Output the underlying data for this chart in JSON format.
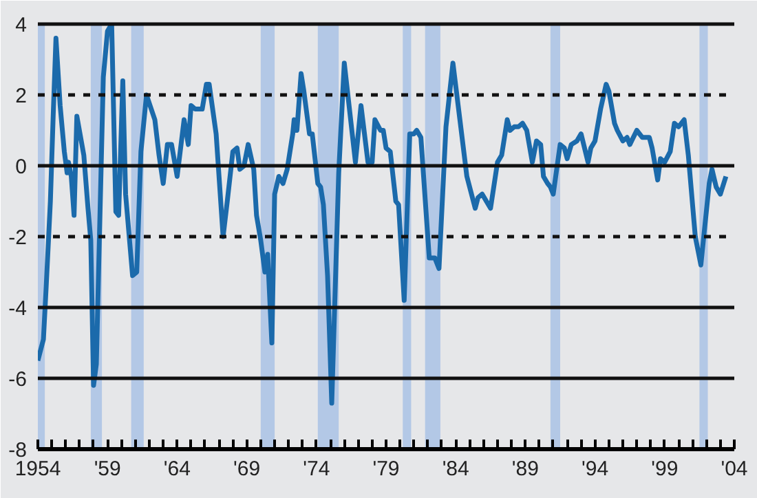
{
  "chart_data": {
    "type": "line",
    "x": [
      1954.0,
      1954.4,
      1954.6,
      1954.9,
      1955.1,
      1955.3,
      1955.6,
      1955.9,
      1956.1,
      1956.2,
      1956.4,
      1956.6,
      1956.8,
      1957.3,
      1957.6,
      1957.8,
      1958.0,
      1958.2,
      1958.7,
      1959.0,
      1959.3,
      1959.6,
      1959.8,
      1960.1,
      1960.3,
      1960.8,
      1961.1,
      1961.4,
      1961.8,
      1962.4,
      1962.7,
      1963.0,
      1963.3,
      1963.6,
      1964.0,
      1964.5,
      1964.8,
      1965.0,
      1965.3,
      1965.8,
      1966.1,
      1966.3,
      1966.8,
      1967.3,
      1967.6,
      1968.0,
      1968.3,
      1968.5,
      1968.8,
      1969.1,
      1969.5,
      1969.7,
      1970.0,
      1970.3,
      1970.5,
      1970.8,
      1971.0,
      1971.3,
      1971.6,
      1971.9,
      1972.3,
      1972.4,
      1972.6,
      1972.9,
      1973.1,
      1973.5,
      1973.7,
      1974.1,
      1974.3,
      1974.5,
      1974.8,
      1975.1,
      1975.6,
      1976.0,
      1976.8,
      1977.2,
      1977.7,
      1978.0,
      1978.2,
      1978.6,
      1978.8,
      1979.0,
      1979.3,
      1979.7,
      1979.9,
      1980.3,
      1980.7,
      1981.0,
      1981.2,
      1981.5,
      1982.1,
      1982.5,
      1982.8,
      1983.3,
      1983.8,
      1984.3,
      1984.8,
      1985.4,
      1985.6,
      1985.9,
      1986.5,
      1987.0,
      1987.3,
      1987.7,
      1987.9,
      1988.2,
      1988.5,
      1988.8,
      1989.1,
      1989.5,
      1989.8,
      1990.1,
      1990.3,
      1990.6,
      1990.8,
      1991.0,
      1991.5,
      1991.8,
      1992.0,
      1992.3,
      1992.7,
      1993.0,
      1993.5,
      1993.7,
      1994.0,
      1994.4,
      1994.8,
      1995.0,
      1995.4,
      1995.6,
      1996.0,
      1996.3,
      1996.5,
      1997.0,
      1997.4,
      1997.9,
      1998.1,
      1998.5,
      1998.7,
      1999.0,
      1999.4,
      1999.7,
      2000.0,
      2000.4,
      2000.7,
      2001.2,
      2001.6,
      2002.2,
      2002.4,
      2002.7,
      2003.0,
      2003.4
    ],
    "series": [
      {
        "color": "#1b6aab",
        "values": [
          -5.5,
          -4.9,
          -3.4,
          -1.0,
          1.4,
          3.6,
          1.7,
          0.4,
          -0.2,
          0.1,
          -0.3,
          -1.4,
          1.4,
          0.3,
          -1.2,
          -2.1,
          -6.2,
          -5.6,
          2.5,
          3.8,
          4.0,
          -1.3,
          -1.4,
          2.4,
          -0.8,
          -3.1,
          -3.0,
          0.4,
          2.0,
          1.3,
          0.3,
          -0.5,
          0.6,
          0.6,
          -0.3,
          1.3,
          0.6,
          1.7,
          1.6,
          1.6,
          2.3,
          2.3,
          0.9,
          -2.0,
          -1.0,
          0.4,
          0.5,
          -0.1,
          0.0,
          0.6,
          -0.1,
          -1.4,
          -2.1,
          -3.0,
          -2.5,
          -5.0,
          -0.8,
          -0.3,
          -0.5,
          -0.1,
          0.9,
          1.3,
          1.0,
          2.6,
          2.1,
          0.9,
          0.9,
          -0.5,
          -0.6,
          -1.1,
          -3.1,
          -6.7,
          -0.2,
          2.9,
          0.1,
          1.7,
          0.1,
          0.1,
          1.3,
          1.0,
          1.0,
          0.5,
          0.4,
          -1.0,
          -1.1,
          -3.8,
          0.9,
          0.9,
          1.0,
          0.8,
          -2.6,
          -2.6,
          -2.9,
          1.1,
          2.9,
          1.3,
          -0.3,
          -1.2,
          -0.9,
          -0.8,
          -1.2,
          0.1,
          0.3,
          1.3,
          1.0,
          1.1,
          1.1,
          1.2,
          1.0,
          0.1,
          0.7,
          0.6,
          -0.3,
          -0.5,
          -0.6,
          -0.8,
          0.6,
          0.5,
          0.2,
          0.6,
          0.7,
          0.9,
          0.1,
          0.5,
          0.7,
          1.6,
          2.3,
          2.1,
          1.2,
          1.0,
          0.7,
          0.8,
          0.6,
          1.0,
          0.8,
          0.8,
          0.5,
          -0.4,
          0.2,
          0.1,
          0.4,
          1.2,
          1.1,
          1.3,
          0.3,
          -2.0,
          -2.8,
          -0.5,
          -0.1,
          -0.6,
          -0.8,
          -0.3
        ]
      }
    ],
    "xlim": [
      1954,
      2004
    ],
    "ylim": [
      -8,
      4
    ],
    "xticks": [
      {
        "value": 1954,
        "label": "1954"
      },
      {
        "value": 1955,
        "label": null
      },
      {
        "value": 1956,
        "label": null
      },
      {
        "value": 1957,
        "label": null
      },
      {
        "value": 1958,
        "label": null
      },
      {
        "value": 1959,
        "label": "'59"
      },
      {
        "value": 1960,
        "label": null
      },
      {
        "value": 1961,
        "label": null
      },
      {
        "value": 1962,
        "label": null
      },
      {
        "value": 1963,
        "label": null
      },
      {
        "value": 1964,
        "label": "'64"
      },
      {
        "value": 1965,
        "label": null
      },
      {
        "value": 1966,
        "label": null
      },
      {
        "value": 1967,
        "label": null
      },
      {
        "value": 1968,
        "label": null
      },
      {
        "value": 1969,
        "label": "'69"
      },
      {
        "value": 1970,
        "label": null
      },
      {
        "value": 1971,
        "label": null
      },
      {
        "value": 1972,
        "label": null
      },
      {
        "value": 1973,
        "label": null
      },
      {
        "value": 1974,
        "label": "'74"
      },
      {
        "value": 1975,
        "label": null
      },
      {
        "value": 1976,
        "label": null
      },
      {
        "value": 1977,
        "label": null
      },
      {
        "value": 1978,
        "label": null
      },
      {
        "value": 1979,
        "label": "'79"
      },
      {
        "value": 1980,
        "label": null
      },
      {
        "value": 1981,
        "label": null
      },
      {
        "value": 1982,
        "label": null
      },
      {
        "value": 1983,
        "label": null
      },
      {
        "value": 1984,
        "label": "'84"
      },
      {
        "value": 1985,
        "label": null
      },
      {
        "value": 1986,
        "label": null
      },
      {
        "value": 1987,
        "label": null
      },
      {
        "value": 1988,
        "label": null
      },
      {
        "value": 1989,
        "label": "'89"
      },
      {
        "value": 1990,
        "label": null
      },
      {
        "value": 1991,
        "label": null
      },
      {
        "value": 1992,
        "label": null
      },
      {
        "value": 1993,
        "label": null
      },
      {
        "value": 1994,
        "label": "'94"
      },
      {
        "value": 1995,
        "label": null
      },
      {
        "value": 1996,
        "label": null
      },
      {
        "value": 1997,
        "label": null
      },
      {
        "value": 1998,
        "label": null
      },
      {
        "value": 1999,
        "label": "'99"
      },
      {
        "value": 2000,
        "label": null
      },
      {
        "value": 2001,
        "label": null
      },
      {
        "value": 2002,
        "label": null
      },
      {
        "value": 2003,
        "label": null
      },
      {
        "value": 2004,
        "label": "'04"
      }
    ],
    "yticks": [
      -8,
      -6,
      -4,
      -2,
      0,
      2,
      4
    ],
    "line_style": "solid",
    "marker": "none",
    "ref_lines": [
      {
        "axis": "y",
        "value": 2,
        "label": null,
        "color": "#111111",
        "line_style": "dashed"
      },
      {
        "axis": "y",
        "value": 0,
        "label": null,
        "color": "#111111",
        "line_style": "solid"
      },
      {
        "axis": "y",
        "value": -2,
        "label": null,
        "color": "#111111",
        "line_style": "dashed"
      },
      {
        "axis": "y",
        "value": -4,
        "label": null,
        "color": "#111111",
        "line_style": "solid"
      },
      {
        "axis": "y",
        "value": -6,
        "label": null,
        "color": "#111111",
        "line_style": "solid"
      }
    ],
    "bands": [
      {
        "axis": "x",
        "from": 1954.0,
        "to": 1954.5,
        "label": null,
        "color": "#b3c8e6"
      },
      {
        "axis": "x",
        "from": 1957.8,
        "to": 1958.6,
        "label": null,
        "color": "#b3c8e6"
      },
      {
        "axis": "x",
        "from": 1960.7,
        "to": 1961.6,
        "label": null,
        "color": "#b3c8e6"
      },
      {
        "axis": "x",
        "from": 1970.0,
        "to": 1971.0,
        "label": null,
        "color": "#b3c8e6"
      },
      {
        "axis": "x",
        "from": 1974.1,
        "to": 1975.6,
        "label": null,
        "color": "#b3c8e6"
      },
      {
        "axis": "x",
        "from": 1980.2,
        "to": 1980.8,
        "label": null,
        "color": "#b3c8e6"
      },
      {
        "axis": "x",
        "from": 1981.8,
        "to": 1982.9,
        "label": null,
        "color": "#b3c8e6"
      },
      {
        "axis": "x",
        "from": 1990.8,
        "to": 1991.5,
        "label": null,
        "color": "#b3c8e6"
      },
      {
        "axis": "x",
        "from": 2001.5,
        "to": 2002.1,
        "label": null,
        "color": "#b3c8e6"
      }
    ]
  }
}
